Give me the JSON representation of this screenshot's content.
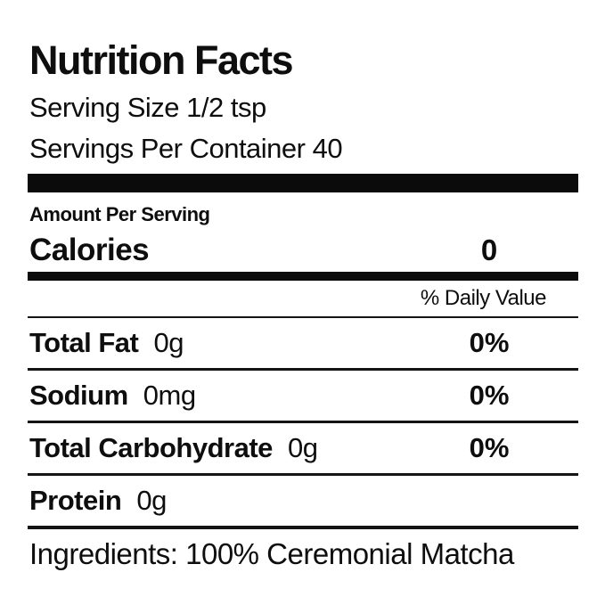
{
  "label": {
    "title": "Nutrition Facts",
    "serving_size": "Serving Size 1/2 tsp",
    "servings_per_container": "Servings Per Container 40",
    "amount_per_serving": "Amount Per Serving",
    "calories": {
      "label": "Calories",
      "value": "0"
    },
    "daily_value_header": "% Daily Value",
    "nutrients": [
      {
        "name": "Total Fat",
        "amount": "0g",
        "daily_value": "0%"
      },
      {
        "name": "Sodium",
        "amount": "0mg",
        "daily_value": "0%"
      },
      {
        "name": "Total Carbohydrate",
        "amount": "0g",
        "daily_value": "0%"
      },
      {
        "name": "Protein",
        "amount": "0g",
        "daily_value": ""
      }
    ],
    "ingredients": "Ingredients: 100% Ceremonial Matcha",
    "colors": {
      "text": "#0e0e0e",
      "rule": "#141414",
      "bar": "#0b0b0b",
      "background": "#ffffff"
    }
  }
}
